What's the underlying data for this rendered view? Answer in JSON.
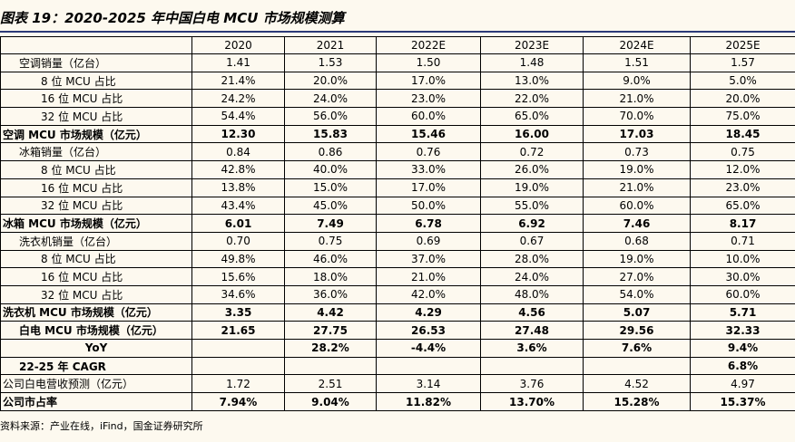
{
  "title": "图表 19：2020-2025 年中国白电 MCU 市场规模测算",
  "columns": [
    "",
    "2020",
    "2021",
    "2022E",
    "2023E",
    "2024E",
    "2025E"
  ],
  "rows": [
    {
      "label": "空调销量（亿台）",
      "indent": 1,
      "bold": false,
      "values": [
        "1.41",
        "1.53",
        "1.50",
        "1.48",
        "1.51",
        "1.57"
      ]
    },
    {
      "label": "8 位 MCU 占比",
      "indent": 2,
      "bold": false,
      "values": [
        "21.4%",
        "20.0%",
        "17.0%",
        "13.0%",
        "9.0%",
        "5.0%"
      ]
    },
    {
      "label": "16 位 MCU 占比",
      "indent": 2,
      "bold": false,
      "values": [
        "24.2%",
        "24.0%",
        "23.0%",
        "22.0%",
        "21.0%",
        "20.0%"
      ]
    },
    {
      "label": "32 位 MCU 占比",
      "indent": 2,
      "bold": false,
      "values": [
        "54.4%",
        "56.0%",
        "60.0%",
        "65.0%",
        "70.0%",
        "75.0%"
      ]
    },
    {
      "label": "空调 MCU 市场规模（亿元）",
      "indent": 0,
      "bold": true,
      "values": [
        "12.30",
        "15.83",
        "15.46",
        "16.00",
        "17.03",
        "18.45"
      ]
    },
    {
      "label": "冰箱销量（亿台）",
      "indent": 1,
      "bold": false,
      "values": [
        "0.84",
        "0.86",
        "0.76",
        "0.72",
        "0.73",
        "0.75"
      ]
    },
    {
      "label": "8 位 MCU 占比",
      "indent": 2,
      "bold": false,
      "values": [
        "42.8%",
        "40.0%",
        "33.0%",
        "26.0%",
        "19.0%",
        "12.0%"
      ]
    },
    {
      "label": "16 位 MCU 占比",
      "indent": 2,
      "bold": false,
      "values": [
        "13.8%",
        "15.0%",
        "17.0%",
        "19.0%",
        "21.0%",
        "23.0%"
      ]
    },
    {
      "label": "32 位 MCU 占比",
      "indent": 2,
      "bold": false,
      "values": [
        "43.4%",
        "45.0%",
        "50.0%",
        "55.0%",
        "60.0%",
        "65.0%"
      ]
    },
    {
      "label": "冰箱 MCU 市场规模（亿元）",
      "indent": 0,
      "bold": true,
      "values": [
        "6.01",
        "7.49",
        "6.78",
        "6.92",
        "7.46",
        "8.17"
      ]
    },
    {
      "label": "洗衣机销量（亿台）",
      "indent": 1,
      "bold": false,
      "values": [
        "0.70",
        "0.75",
        "0.69",
        "0.67",
        "0.68",
        "0.71"
      ]
    },
    {
      "label": "8 位 MCU 占比",
      "indent": 2,
      "bold": false,
      "values": [
        "49.8%",
        "46.0%",
        "37.0%",
        "28.0%",
        "19.0%",
        "10.0%"
      ]
    },
    {
      "label": "16 位 MCU 占比",
      "indent": 2,
      "bold": false,
      "values": [
        "15.6%",
        "18.0%",
        "21.0%",
        "24.0%",
        "27.0%",
        "30.0%"
      ]
    },
    {
      "label": "32 位 MCU 占比",
      "indent": 2,
      "bold": false,
      "values": [
        "34.6%",
        "36.0%",
        "42.0%",
        "48.0%",
        "54.0%",
        "60.0%"
      ]
    },
    {
      "label": "洗衣机 MCU 市场规模（亿元）",
      "indent": 0,
      "bold": true,
      "values": [
        "3.35",
        "4.42",
        "4.29",
        "4.56",
        "5.07",
        "5.71"
      ]
    },
    {
      "label": "白电 MCU 市场规模（亿元）",
      "indent": 1,
      "bold": true,
      "values": [
        "21.65",
        "27.75",
        "26.53",
        "27.48",
        "29.56",
        "32.33"
      ]
    },
    {
      "label": "YoY",
      "indent": 3,
      "bold": true,
      "values": [
        "",
        "28.2%",
        "-4.4%",
        "3.6%",
        "7.6%",
        "9.4%"
      ]
    },
    {
      "label": "22-25 年 CAGR",
      "indent": 1,
      "bold": true,
      "values": [
        "",
        "",
        "",
        "",
        "",
        "6.8%"
      ]
    },
    {
      "label": "公司白电营收预测（亿元）",
      "indent": 0,
      "bold": false,
      "values": [
        "1.72",
        "2.51",
        "3.14",
        "3.76",
        "4.52",
        "4.97"
      ]
    },
    {
      "label": "公司市占率",
      "indent": 0,
      "bold": true,
      "values": [
        "7.94%",
        "9.04%",
        "11.82%",
        "13.70%",
        "15.28%",
        "15.37%"
      ]
    }
  ],
  "source": "资料来源：产业在线，iFind，国金证券研究所"
}
